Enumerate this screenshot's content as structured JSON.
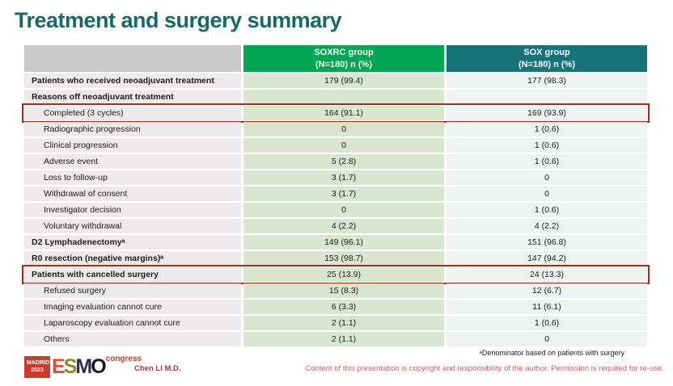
{
  "slide": {
    "title": "Treatment and surgery summary"
  },
  "table": {
    "headers": {
      "group1_line1": "SOXRC group",
      "group1_line2": "(N=180)  n (%)",
      "group2_line1": "SOX group",
      "group2_line2": "(N=180)  n (%)"
    },
    "rows": [
      {
        "label": "Patients who received neoadjuvant treatment",
        "indent": false,
        "bold": true,
        "soxrc": "179 (99.4)",
        "sox": "177 (98.3)",
        "highlighted": false
      },
      {
        "label": "Reasons off neoadjuvant treatment",
        "indent": false,
        "bold": true,
        "soxrc": "",
        "sox": "",
        "highlighted": false
      },
      {
        "label": "Completed (3 cycles)",
        "indent": true,
        "bold": false,
        "soxrc": "164 (91.1)",
        "sox": "169 (93.9)",
        "highlighted": true
      },
      {
        "label": "Radiographic progression",
        "indent": true,
        "bold": false,
        "soxrc": "0",
        "sox": "1 (0.6)",
        "highlighted": false
      },
      {
        "label": "Clinical progression",
        "indent": true,
        "bold": false,
        "soxrc": "0",
        "sox": "1 (0.6)",
        "highlighted": false
      },
      {
        "label": "Adverse event",
        "indent": true,
        "bold": false,
        "soxrc": "5 (2.8)",
        "sox": "1 (0.6)",
        "highlighted": false
      },
      {
        "label": "Loss to follow-up",
        "indent": true,
        "bold": false,
        "soxrc": "3 (1.7)",
        "sox": "0",
        "highlighted": false
      },
      {
        "label": "Withdrawal of consent",
        "indent": true,
        "bold": false,
        "soxrc": "3 (1.7)",
        "sox": "0",
        "highlighted": false
      },
      {
        "label": "Investigator decision",
        "indent": true,
        "bold": false,
        "soxrc": "0",
        "sox": "1 (0.6)",
        "highlighted": false
      },
      {
        "label": "Voluntary withdrawal",
        "indent": true,
        "bold": false,
        "soxrc": "4 (2.2)",
        "sox": "4 (2.2)",
        "highlighted": false
      },
      {
        "label": "D2 Lymphadenectomyᵃ",
        "indent": false,
        "bold": true,
        "soxrc": "149 (96.1)",
        "sox": "151 (96.8)",
        "highlighted": false
      },
      {
        "label": "R0 resection (negative margins)ᵃ",
        "indent": false,
        "bold": true,
        "soxrc": "153 (98.7)",
        "sox": "147 (94.2)",
        "highlighted": false
      },
      {
        "label": "Patients with cancelled surgery",
        "indent": false,
        "bold": true,
        "soxrc": "25 (13.9)",
        "sox": "24 (13.3)",
        "highlighted": true
      },
      {
        "label": "Refused surgery",
        "indent": true,
        "bold": false,
        "soxrc": "15 (8.3)",
        "sox": "12 (6.7)",
        "highlighted": false
      },
      {
        "label": "Imaging evaluation cannot cure",
        "indent": true,
        "bold": false,
        "soxrc": "6 (3.3)",
        "sox": "11 (6.1)",
        "highlighted": false
      },
      {
        "label": "Laparoscopy evaluation cannot cure",
        "indent": true,
        "bold": false,
        "soxrc": "2 (1.1)",
        "sox": "1 (0.6)",
        "highlighted": false
      },
      {
        "label": "Others",
        "indent": true,
        "bold": false,
        "soxrc": "2 (1.1)",
        "sox": "0",
        "highlighted": false
      }
    ]
  },
  "footer": {
    "logo": {
      "city": "MADRID",
      "year": "2023",
      "letters": [
        "E",
        "S",
        "M",
        "O"
      ],
      "suffix": "congress"
    },
    "presenter": "Chen LI M.D.",
    "footnote": "ᵃDenominator based on patients with surgery",
    "copyright": "Content of this presentation is copyright and responsibility of the author.  Permission is required for re-use."
  },
  "colors": {
    "title": "#156a66",
    "header_group1": "#00a651",
    "header_group2": "#16737a",
    "header_blank": "#c9c9c9",
    "label_cell": "#eceaea",
    "soxrc_cell": "#d8e6d0",
    "sox_cell": "#eef2f0",
    "highlight_border": "#9d2b1f",
    "copyright_text": "#c4625f"
  }
}
